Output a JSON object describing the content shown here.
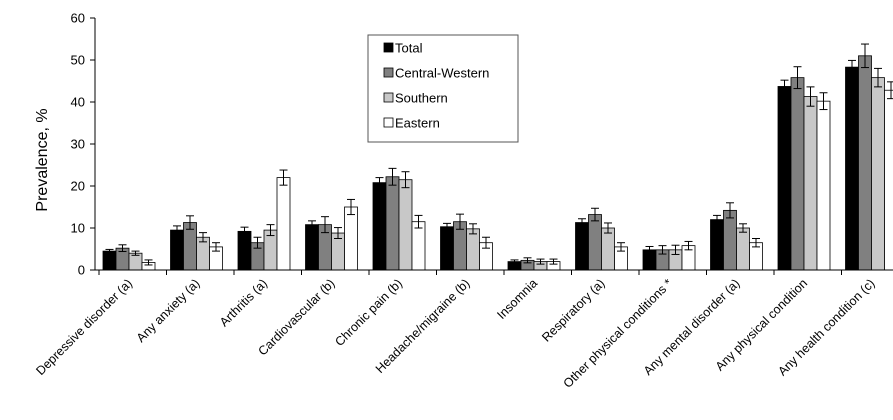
{
  "chart_data": {
    "type": "bar",
    "title": "",
    "xlabel": "",
    "ylabel": "Prevalence, %",
    "ylim": [
      0,
      60
    ],
    "yticks": [
      0,
      10,
      20,
      30,
      40,
      50,
      60
    ],
    "grid": false,
    "legend_position": "top-center",
    "categories": [
      "Depressive disorder (a)",
      "Any anxiety (a)",
      "Arthritis (a)",
      "Cardiovascular (b)",
      "Chronic pain (b)",
      "Headache/migraine (b)",
      "Insomnia",
      "Respiratory (a)",
      "Other physical conditions *",
      "Any mental disorder (a)",
      "Any physical condition",
      "Any health condition (c)"
    ],
    "series": [
      {
        "name": "Total",
        "color": "#000000",
        "values": [
          4.5,
          9.5,
          9.2,
          10.8,
          20.8,
          10.3,
          2.0,
          11.3,
          4.8,
          12.0,
          43.7,
          48.3
        ],
        "errors": [
          0.4,
          1.0,
          1.0,
          0.9,
          1.2,
          0.8,
          0.4,
          0.9,
          0.8,
          1.0,
          1.5,
          1.6
        ]
      },
      {
        "name": "Central-Western",
        "color": "#808080",
        "values": [
          5.2,
          11.3,
          6.5,
          10.8,
          22.2,
          11.5,
          2.3,
          13.2,
          4.8,
          14.2,
          45.8,
          51.0
        ],
        "errors": [
          0.8,
          1.6,
          1.3,
          1.9,
          2.0,
          1.8,
          0.6,
          1.5,
          1.0,
          1.8,
          2.6,
          2.8
        ]
      },
      {
        "name": "Southern",
        "color": "#c8c8c8",
        "values": [
          4.0,
          7.8,
          9.5,
          8.8,
          21.5,
          9.8,
          2.0,
          10.0,
          4.8,
          10.0,
          41.3,
          45.8
        ],
        "errors": [
          0.5,
          1.1,
          1.3,
          1.3,
          1.9,
          1.2,
          0.6,
          1.2,
          1.1,
          1.0,
          2.3,
          2.2
        ]
      },
      {
        "name": "Eastern",
        "color": "#ffffff",
        "values": [
          1.8,
          5.5,
          22.0,
          15.0,
          11.5,
          6.5,
          2.0,
          5.5,
          5.8,
          6.5,
          40.2,
          42.8
        ],
        "errors": [
          0.6,
          1.0,
          1.8,
          1.8,
          1.5,
          1.3,
          0.6,
          1.0,
          1.0,
          1.0,
          2.0,
          2.0
        ]
      }
    ]
  }
}
